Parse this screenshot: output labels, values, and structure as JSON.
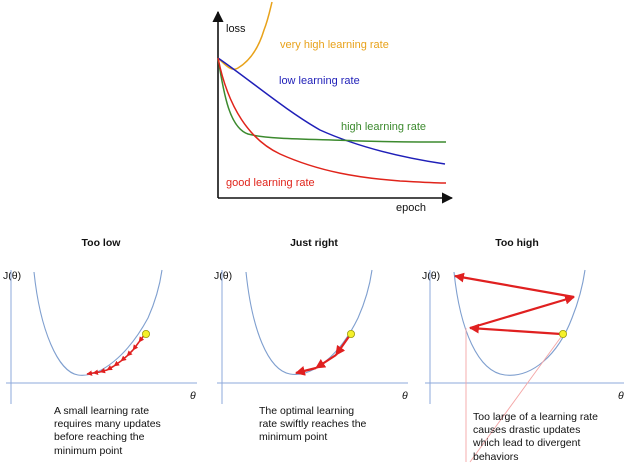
{
  "top_chart": {
    "y_axis_label": "loss",
    "x_axis_label": "epoch",
    "curves": [
      {
        "name": "very high learning rate",
        "color": "#E8A21A"
      },
      {
        "name": "low learning rate",
        "color": "#1F1FB8"
      },
      {
        "name": "high learning rate",
        "color": "#3C8A2E"
      },
      {
        "name": "good learning rate",
        "color": "#E0241B"
      }
    ]
  },
  "panels": [
    {
      "title": "Too low",
      "y_label": "J(θ)",
      "x_label": "θ",
      "caption_lines": [
        "A small learning rate",
        "requires many updates",
        "before reaching the",
        "minimum point"
      ]
    },
    {
      "title": "Just right",
      "y_label": "J(θ)",
      "x_label": "θ",
      "caption_lines": [
        "The optimal learning",
        "rate swiftly reaches the",
        "minimum point"
      ]
    },
    {
      "title": "Too high",
      "y_label": "J(θ)",
      "x_label": "θ",
      "caption_lines": [
        "Too large of a learning rate",
        "causes drastic updates",
        "which lead to divergent",
        "behaviors"
      ]
    }
  ],
  "colors": {
    "axis": "#111111",
    "panel_axis": "#8EA9DB",
    "panel_curve": "#7F9FCF",
    "arrow": "#E02020",
    "point_fill": "#F5F02A",
    "point_stroke": "#9A9A10",
    "leader": "#F4A6A6"
  }
}
